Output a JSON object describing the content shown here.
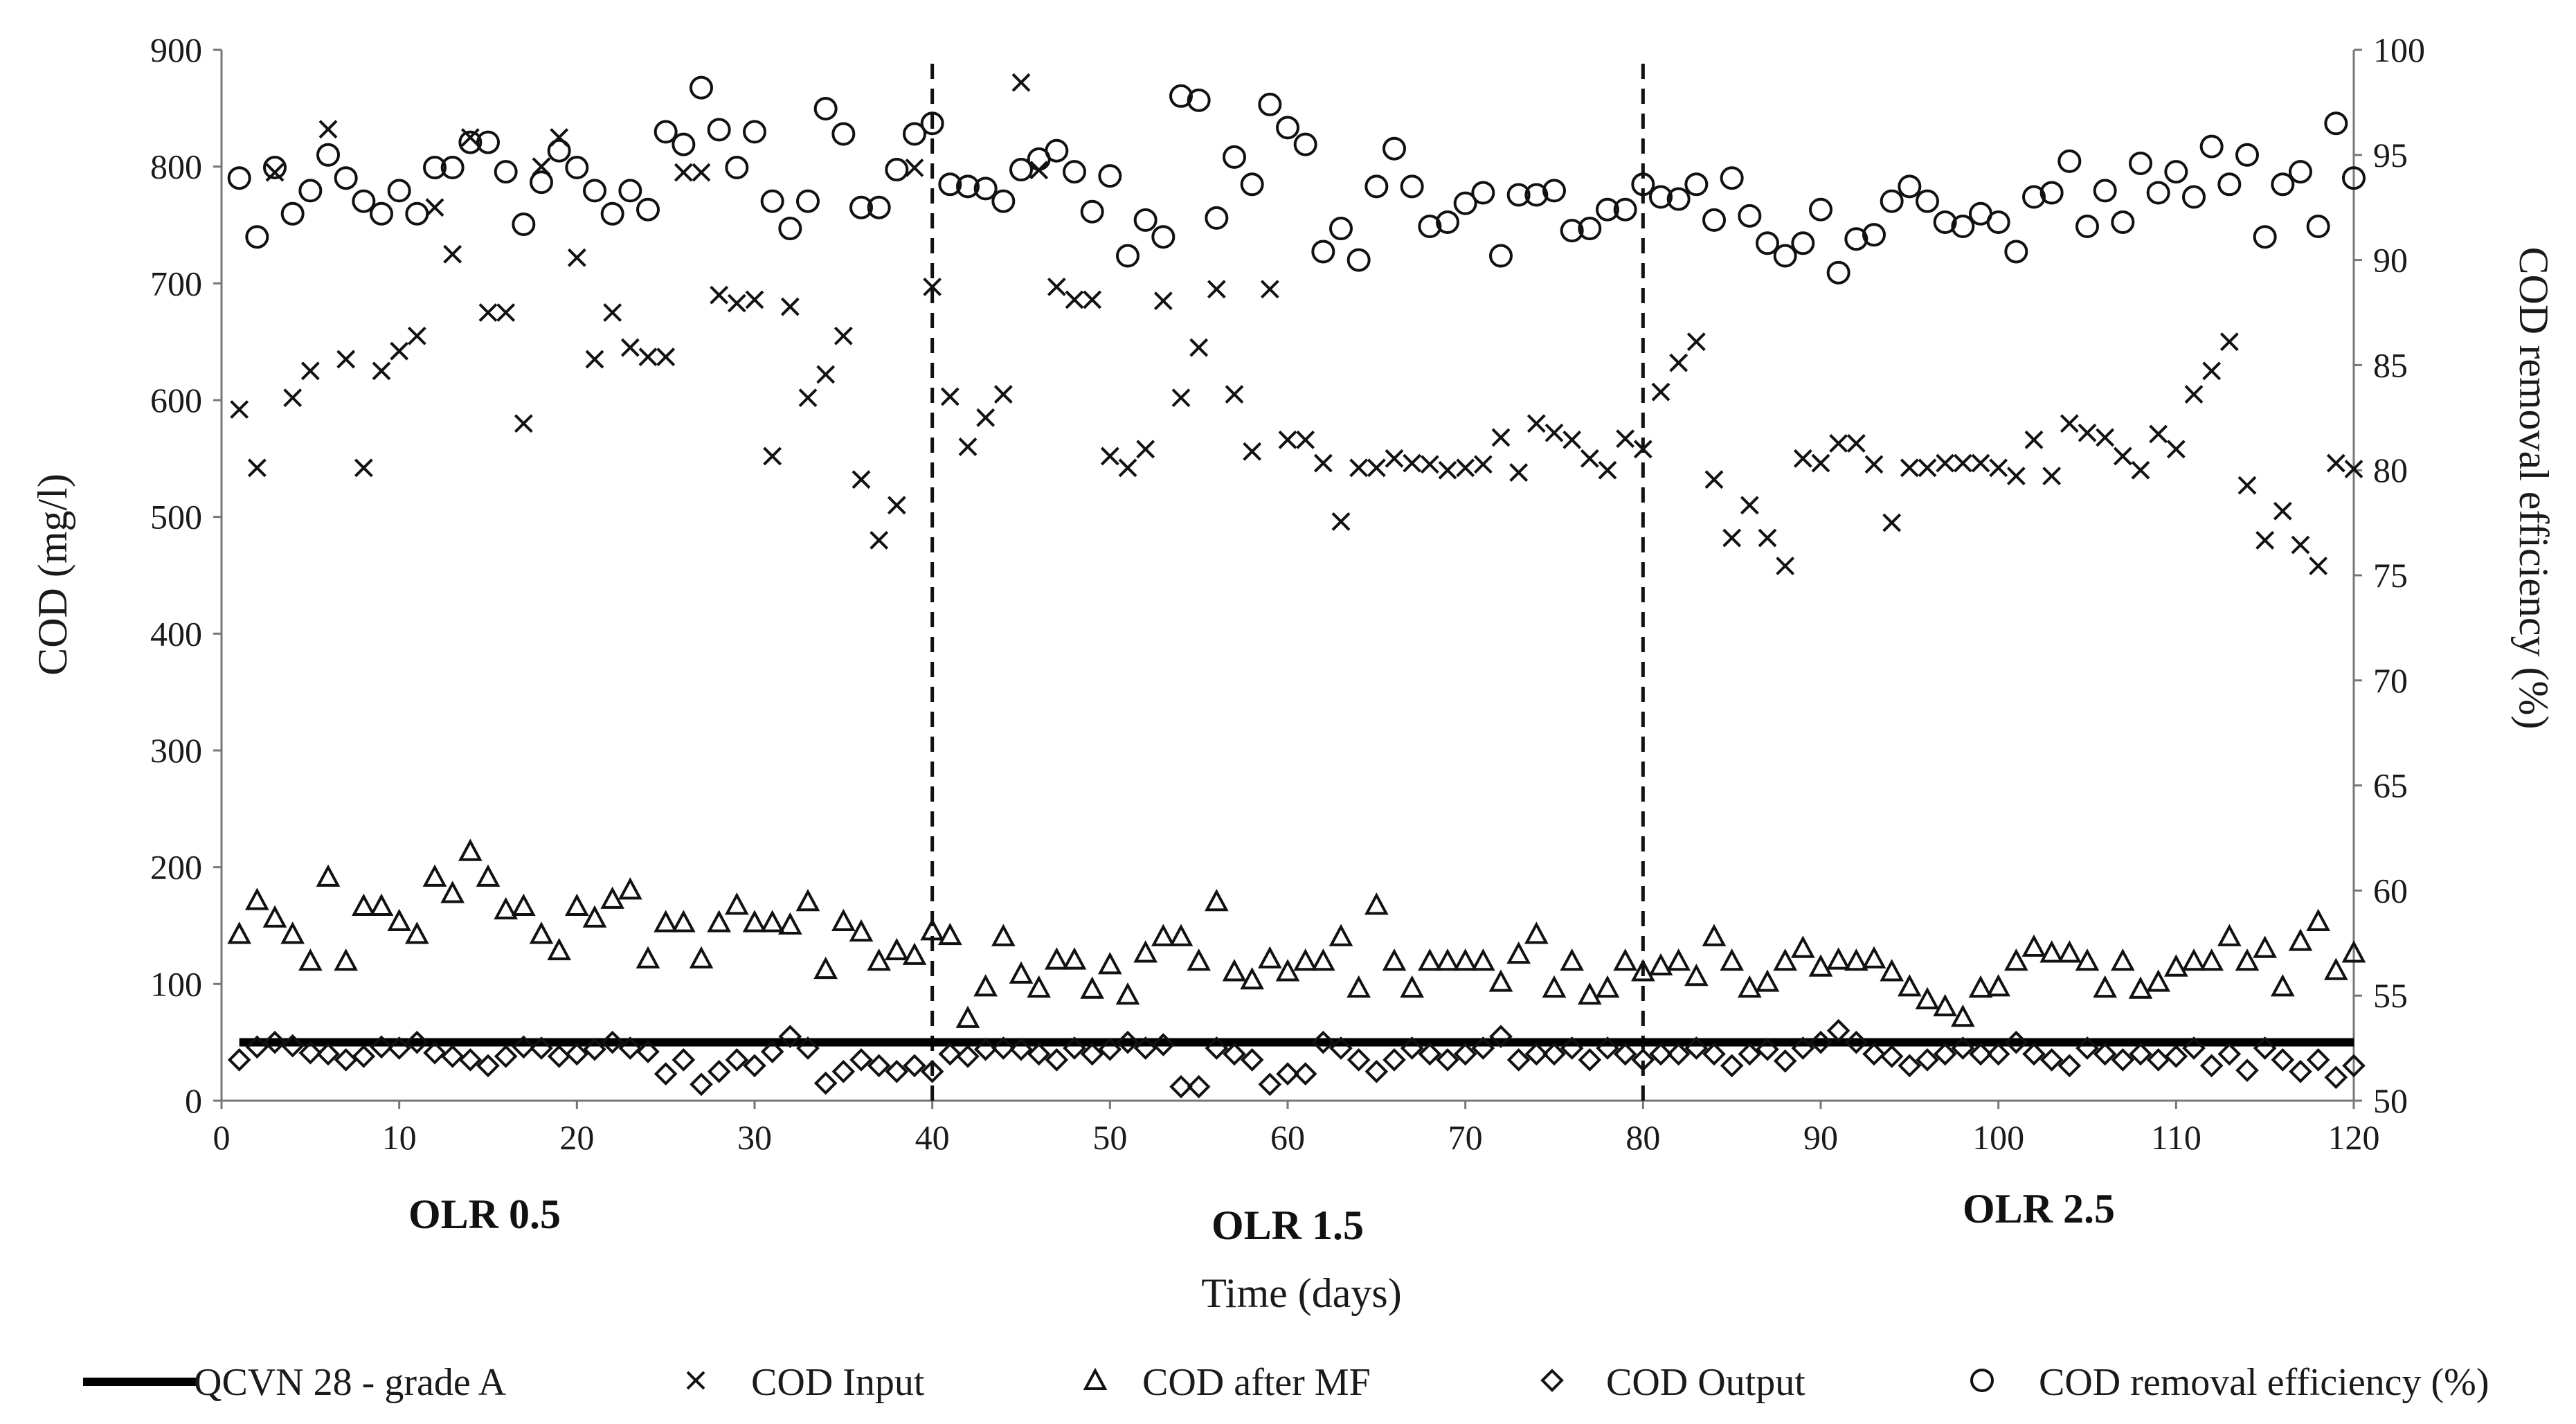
{
  "chart_data": {
    "type": "scatter",
    "title": "",
    "xlabel": "Time (days)",
    "ylabel": "COD (mg/l)",
    "y2label": "COD removal efficiency  (%)",
    "xlim": [
      0,
      120
    ],
    "ylim": [
      0,
      900
    ],
    "y2lim": [
      50,
      100
    ],
    "xticks": [
      0,
      10,
      20,
      30,
      40,
      50,
      60,
      70,
      80,
      90,
      100,
      110,
      120
    ],
    "yticks": [
      0,
      100,
      200,
      300,
      400,
      500,
      600,
      700,
      800,
      900
    ],
    "y2ticks": [
      50,
      55,
      60,
      65,
      70,
      75,
      80,
      85,
      90,
      95,
      100
    ],
    "grid": false,
    "phase_dividers": [
      40,
      80
    ],
    "phase_labels": [
      {
        "label": "OLR 0.5",
        "x": 15
      },
      {
        "label": "OLR 1.5",
        "x": 60
      },
      {
        "label": "OLR 2.5",
        "x": 103
      }
    ],
    "reference_line": {
      "name": "QCVN 28 - grade A",
      "value": 50,
      "x_range": [
        1,
        120
      ]
    },
    "series": [
      {
        "name": "COD Input",
        "marker": "x",
        "axis": "left",
        "x": [
          1,
          2,
          3,
          4,
          5,
          6,
          7,
          8,
          9,
          10,
          11,
          12,
          13,
          14,
          15,
          16,
          17,
          18,
          19,
          20,
          21,
          22,
          23,
          24,
          25,
          26,
          27,
          28,
          29,
          30,
          31,
          32,
          33,
          34,
          35,
          36,
          37,
          38,
          39,
          40,
          41,
          42,
          43,
          44,
          45,
          46,
          47,
          48,
          49,
          50,
          51,
          52,
          53,
          54,
          55,
          56,
          57,
          58,
          59,
          60,
          61,
          62,
          63,
          64,
          65,
          66,
          67,
          68,
          69,
          70,
          71,
          72,
          73,
          74,
          75,
          76,
          77,
          78,
          79,
          80,
          81,
          82,
          83,
          84,
          85,
          86,
          87,
          88,
          89,
          90,
          91,
          92,
          93,
          94,
          95,
          96,
          97,
          98,
          99,
          100,
          101,
          102,
          103,
          104,
          105,
          106,
          107,
          108,
          109,
          110,
          111,
          112,
          113,
          114,
          115,
          116,
          117,
          118,
          119,
          120
        ],
        "values": [
          592,
          542,
          795,
          602,
          625,
          832,
          635,
          542,
          625,
          642,
          655,
          765,
          725,
          825,
          675,
          675,
          580,
          800,
          825,
          722,
          635,
          675,
          645,
          637,
          637,
          795,
          795,
          690,
          683,
          686,
          552,
          680,
          602,
          622,
          655,
          532,
          480,
          510,
          799,
          697,
          603,
          560,
          585,
          605,
          872,
          797,
          697,
          686,
          686,
          552,
          542,
          558,
          685,
          602,
          645,
          695,
          605,
          556,
          695,
          566,
          566,
          546,
          496,
          542,
          542,
          550,
          546,
          545,
          540,
          542,
          545,
          568,
          538,
          580,
          572,
          566,
          550,
          540,
          567,
          558,
          607,
          632,
          650,
          532,
          482,
          510,
          482,
          458,
          550,
          546,
          563,
          563,
          545,
          495,
          542,
          542,
          546,
          546,
          546,
          542,
          535,
          566,
          535,
          580,
          572,
          568,
          552,
          540,
          571,
          558,
          605,
          625,
          650,
          527,
          480,
          505,
          476,
          458,
          546,
          541
        ]
      },
      {
        "name": "COD after MF",
        "marker": "triangle",
        "axis": "left",
        "x": [
          1,
          2,
          3,
          4,
          5,
          6,
          7,
          8,
          9,
          10,
          11,
          12,
          13,
          14,
          15,
          16,
          17,
          18,
          19,
          20,
          21,
          22,
          23,
          24,
          25,
          26,
          27,
          28,
          29,
          30,
          31,
          32,
          33,
          34,
          35,
          36,
          37,
          38,
          39,
          40,
          41,
          42,
          43,
          44,
          45,
          46,
          47,
          48,
          49,
          50,
          51,
          52,
          53,
          54,
          55,
          56,
          57,
          58,
          59,
          60,
          61,
          62,
          63,
          64,
          65,
          66,
          67,
          68,
          69,
          70,
          71,
          72,
          73,
          74,
          75,
          76,
          77,
          78,
          79,
          80,
          81,
          82,
          83,
          84,
          85,
          86,
          87,
          88,
          89,
          90,
          91,
          92,
          93,
          94,
          95,
          96,
          97,
          98,
          99,
          100,
          101,
          102,
          103,
          104,
          105,
          106,
          107,
          108,
          109,
          110,
          111,
          112,
          113,
          114,
          115,
          116,
          117,
          118,
          119,
          120
        ],
        "values": [
          142,
          171,
          156,
          142,
          119,
          191,
          119,
          166,
          166,
          153,
          142,
          191,
          177,
          213,
          191,
          163,
          166,
          142,
          128,
          166,
          156,
          172,
          180,
          121,
          152,
          152,
          121,
          152,
          167,
          152,
          152,
          150,
          170,
          112,
          153,
          144,
          119,
          128,
          124,
          145,
          141,
          70,
          97,
          140,
          108,
          96,
          120,
          120,
          95,
          116,
          90,
          126,
          140,
          140,
          119,
          170,
          110,
          103,
          121,
          110,
          119,
          119,
          140,
          96,
          167,
          119,
          96,
          119,
          119,
          119,
          119,
          101,
          125,
          142,
          96,
          119,
          90,
          96,
          119,
          110,
          115,
          119,
          106,
          140,
          119,
          96,
          101,
          119,
          130,
          114,
          120,
          119,
          121,
          110,
          97,
          86,
          80,
          71,
          96,
          97,
          119,
          131,
          126,
          126,
          119,
          96,
          119,
          95,
          101,
          114,
          119,
          119,
          140,
          119,
          130,
          97,
          136,
          153,
          111,
          126
        ]
      },
      {
        "name": "COD Output",
        "marker": "diamond",
        "axis": "left",
        "x": [
          1,
          2,
          3,
          4,
          5,
          6,
          7,
          8,
          9,
          10,
          11,
          12,
          13,
          14,
          15,
          16,
          17,
          18,
          19,
          20,
          21,
          22,
          23,
          24,
          25,
          26,
          27,
          28,
          29,
          30,
          31,
          32,
          33,
          34,
          35,
          36,
          37,
          38,
          39,
          40,
          41,
          42,
          43,
          44,
          45,
          46,
          47,
          48,
          49,
          50,
          51,
          52,
          53,
          54,
          55,
          56,
          57,
          58,
          59,
          60,
          61,
          62,
          63,
          64,
          65,
          66,
          67,
          68,
          69,
          70,
          71,
          72,
          73,
          74,
          75,
          76,
          77,
          78,
          79,
          80,
          81,
          82,
          83,
          84,
          85,
          86,
          87,
          88,
          89,
          90,
          91,
          92,
          93,
          94,
          95,
          96,
          97,
          98,
          99,
          100,
          101,
          102,
          103,
          104,
          105,
          106,
          107,
          108,
          109,
          110,
          111,
          112,
          113,
          114,
          115,
          116,
          117,
          118,
          119,
          120
        ],
        "values": [
          35,
          46,
          50,
          47,
          41,
          40,
          35,
          38,
          46,
          45,
          50,
          41,
          38,
          35,
          30,
          38,
          46,
          45,
          38,
          40,
          44,
          50,
          45,
          42,
          23,
          35,
          14,
          25,
          35,
          30,
          42,
          55,
          45,
          15,
          25,
          35,
          30,
          25,
          30,
          25,
          40,
          38,
          44,
          45,
          44,
          40,
          35,
          45,
          40,
          44,
          50,
          45,
          48,
          12,
          12,
          45,
          40,
          35,
          14,
          23,
          23,
          50,
          45,
          35,
          25,
          35,
          45,
          40,
          35,
          40,
          45,
          55,
          35,
          40,
          40,
          45,
          35,
          45,
          40,
          35,
          40,
          40,
          45,
          40,
          30,
          40,
          44,
          34,
          45,
          50,
          60,
          50,
          40,
          38,
          30,
          35,
          40,
          45,
          40,
          40,
          50,
          40,
          35,
          30,
          45,
          40,
          35,
          40,
          35,
          38,
          45,
          30,
          40,
          26,
          45,
          35,
          25,
          35,
          20,
          30
        ]
      },
      {
        "name": "COD removal efficiency (%)",
        "marker": "circle",
        "axis": "right",
        "x": [
          1,
          2,
          3,
          4,
          5,
          6,
          7,
          8,
          9,
          10,
          11,
          12,
          13,
          14,
          15,
          16,
          17,
          18,
          19,
          20,
          21,
          22,
          23,
          24,
          25,
          26,
          27,
          28,
          29,
          30,
          31,
          32,
          33,
          34,
          35,
          36,
          37,
          38,
          39,
          40,
          41,
          42,
          43,
          44,
          45,
          46,
          47,
          48,
          49,
          50,
          51,
          52,
          53,
          54,
          55,
          56,
          57,
          58,
          59,
          60,
          61,
          62,
          63,
          64,
          65,
          66,
          67,
          68,
          69,
          70,
          71,
          72,
          73,
          74,
          75,
          76,
          77,
          78,
          79,
          80,
          81,
          82,
          83,
          84,
          85,
          86,
          87,
          88,
          89,
          90,
          91,
          92,
          93,
          94,
          95,
          96,
          97,
          98,
          99,
          100,
          101,
          102,
          103,
          104,
          105,
          106,
          107,
          108,
          109,
          110,
          111,
          112,
          113,
          114,
          115,
          116,
          117,
          118,
          119,
          120
        ],
        "values": [
          93.9,
          91.1,
          94.4,
          92.2,
          93.3,
          95.0,
          93.9,
          92.8,
          92.2,
          93.3,
          92.2,
          94.4,
          94.4,
          95.6,
          95.6,
          94.2,
          91.7,
          93.7,
          95.2,
          94.4,
          93.3,
          92.2,
          93.3,
          92.4,
          96.1,
          95.5,
          98.2,
          96.2,
          94.4,
          96.1,
          92.8,
          91.5,
          92.8,
          97.2,
          96.0,
          92.5,
          92.5,
          94.3,
          96.0,
          96.5,
          93.6,
          93.5,
          93.4,
          92.8,
          94.3,
          94.8,
          95.2,
          94.2,
          92.3,
          94.0,
          90.2,
          91.9,
          91.1,
          97.8,
          97.6,
          92.0,
          94.9,
          93.6,
          97.4,
          96.3,
          95.5,
          90.4,
          91.5,
          90.0,
          93.5,
          95.3,
          93.5,
          91.6,
          91.8,
          92.7,
          93.2,
          90.2,
          93.1,
          93.1,
          93.3,
          91.4,
          91.5,
          92.4,
          92.4,
          93.6,
          93.0,
          92.9,
          93.6,
          91.9,
          93.9,
          92.1,
          90.8,
          90.2,
          90.8,
          92.4,
          89.4,
          91.0,
          91.2,
          92.8,
          93.5,
          92.8,
          91.8,
          91.6,
          92.2,
          91.8,
          90.4,
          93.0,
          93.2,
          94.7,
          91.6,
          93.3,
          91.8,
          94.6,
          93.2,
          94.2,
          93.0,
          95.4,
          93.6,
          95.0,
          91.1,
          93.6,
          94.2,
          91.6,
          96.5,
          93.9
        ]
      }
    ]
  },
  "legend": {
    "items": [
      {
        "label": "QCVN 28 - grade A"
      },
      {
        "label": "COD Input"
      },
      {
        "label": "COD after MF"
      },
      {
        "label": "COD Output"
      },
      {
        "label": "COD removal efficiency (%)"
      }
    ]
  }
}
